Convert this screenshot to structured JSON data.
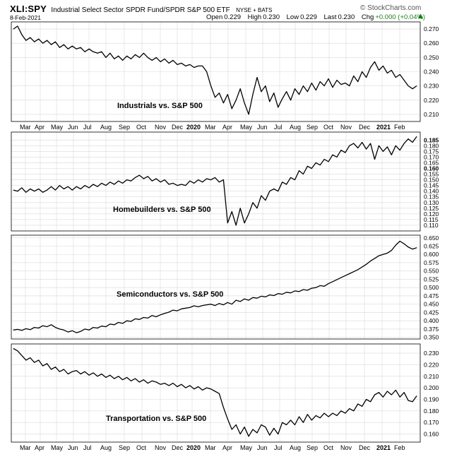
{
  "header": {
    "symbol": "XLI:SPY",
    "description": "Industrial Select Sector SPDR Fund/SPDR S&P 500 ETF",
    "exchange": "NYSE + BATS",
    "date": "8-Feb-2021",
    "open_label": "Open",
    "open": "0.229",
    "high_label": "High",
    "high": "0.230",
    "low_label": "Low",
    "low": "0.229",
    "last_label": "Last",
    "last": "0.230",
    "chg_label": "Chg",
    "chg": "+0.000 (+0.04%)",
    "watermark": "© StockCharts.com",
    "flag_icon": "up-arrow-icon",
    "colors": {
      "line": "#000000",
      "grid": "#d9d9d9",
      "border": "#000000",
      "chg": "#1a7d1a"
    }
  },
  "x_axis": {
    "labels": [
      "Mar",
      "Apr",
      "May",
      "Jun",
      "Jul",
      "Aug",
      "Sep",
      "Oct",
      "Nov",
      "Dec",
      "2020",
      "Mar",
      "Apr",
      "May",
      "Jun",
      "Jul",
      "Aug",
      "Sep",
      "Oct",
      "Nov",
      "Dec",
      "2021",
      "Feb"
    ],
    "bold": [
      "2020",
      "2021"
    ]
  },
  "chart_data": [
    {
      "type": "line",
      "label": "Industrials vs. S&P 500",
      "ylim": [
        0.205,
        0.275
      ],
      "yticks": [
        "0.270",
        "0.260",
        "0.250",
        "0.240",
        "0.230",
        "0.220",
        "0.210"
      ],
      "ytick_values": [
        0.27,
        0.26,
        0.25,
        0.24,
        0.23,
        0.22,
        0.21
      ],
      "grid": true,
      "x": [
        0,
        6,
        12,
        18,
        24,
        30,
        36,
        42,
        48,
        54,
        60,
        66,
        72,
        78,
        84,
        90,
        96,
        102,
        108,
        114,
        120,
        126,
        132,
        138,
        144,
        150,
        156,
        162,
        168,
        174,
        180,
        186,
        192,
        198,
        204,
        210,
        216,
        222,
        228,
        234,
        240,
        246,
        252,
        258,
        264,
        270,
        276,
        282,
        288,
        294,
        300,
        306,
        312,
        318,
        324,
        330,
        336,
        342,
        348,
        354,
        360,
        366,
        372,
        378,
        384,
        390,
        396,
        402,
        408,
        414,
        420,
        426,
        432,
        438,
        444,
        450,
        456,
        462,
        468,
        474,
        480,
        486,
        492,
        498,
        504,
        510,
        516,
        522,
        528,
        534,
        540,
        546,
        552,
        558,
        564,
        570,
        576
      ],
      "values": [
        0.27,
        0.272,
        0.266,
        0.262,
        0.264,
        0.261,
        0.263,
        0.26,
        0.262,
        0.259,
        0.261,
        0.257,
        0.259,
        0.256,
        0.258,
        0.256,
        0.257,
        0.254,
        0.256,
        0.254,
        0.253,
        0.254,
        0.25,
        0.253,
        0.249,
        0.251,
        0.248,
        0.251,
        0.249,
        0.252,
        0.25,
        0.253,
        0.25,
        0.248,
        0.25,
        0.247,
        0.249,
        0.246,
        0.248,
        0.245,
        0.246,
        0.244,
        0.245,
        0.243,
        0.244,
        0.244,
        0.24,
        0.23,
        0.222,
        0.225,
        0.218,
        0.224,
        0.214,
        0.22,
        0.228,
        0.218,
        0.21,
        0.224,
        0.236,
        0.226,
        0.23,
        0.219,
        0.225,
        0.215,
        0.221,
        0.226,
        0.22,
        0.228,
        0.224,
        0.23,
        0.226,
        0.232,
        0.227,
        0.233,
        0.23,
        0.235,
        0.229,
        0.234,
        0.231,
        0.232,
        0.23,
        0.237,
        0.233,
        0.24,
        0.236,
        0.243,
        0.247,
        0.241,
        0.244,
        0.239,
        0.241,
        0.236,
        0.238,
        0.234,
        0.23,
        0.228,
        0.23
      ]
    },
    {
      "type": "line",
      "label": "Homebuilders vs. S&P 500",
      "ylim": [
        0.105,
        0.192
      ],
      "yticks": [
        "0.185",
        "0.180",
        "0.175",
        "0.170",
        "0.165",
        "0.160",
        "0.155",
        "0.150",
        "0.145",
        "0.140",
        "0.135",
        "0.130",
        "0.125",
        "0.120",
        "0.115",
        "0.110"
      ],
      "ytick_values": [
        0.185,
        0.18,
        0.175,
        0.17,
        0.165,
        0.16,
        0.155,
        0.15,
        0.145,
        0.14,
        0.135,
        0.13,
        0.125,
        0.12,
        0.115,
        0.11
      ],
      "bold_ticks": [
        "0.185",
        "0.160"
      ],
      "grid": true,
      "x": [
        0,
        6,
        12,
        18,
        24,
        30,
        36,
        42,
        48,
        54,
        60,
        66,
        72,
        78,
        84,
        90,
        96,
        102,
        108,
        114,
        120,
        126,
        132,
        138,
        144,
        150,
        156,
        162,
        168,
        174,
        180,
        186,
        192,
        198,
        204,
        210,
        216,
        222,
        228,
        234,
        240,
        246,
        252,
        258,
        264,
        270,
        276,
        282,
        288,
        294,
        300,
        306,
        312,
        318,
        324,
        330,
        336,
        342,
        348,
        354,
        360,
        366,
        372,
        378,
        384,
        390,
        396,
        402,
        408,
        414,
        420,
        426,
        432,
        438,
        444,
        450,
        456,
        462,
        468,
        474,
        480,
        486,
        492,
        498,
        504,
        510,
        516,
        522,
        528,
        534,
        540,
        546,
        552,
        558,
        564,
        570,
        576
      ],
      "values": [
        0.141,
        0.14,
        0.143,
        0.139,
        0.142,
        0.14,
        0.142,
        0.139,
        0.141,
        0.144,
        0.141,
        0.145,
        0.142,
        0.144,
        0.141,
        0.144,
        0.142,
        0.145,
        0.143,
        0.146,
        0.144,
        0.147,
        0.145,
        0.148,
        0.146,
        0.149,
        0.147,
        0.15,
        0.149,
        0.152,
        0.154,
        0.151,
        0.153,
        0.149,
        0.151,
        0.148,
        0.15,
        0.146,
        0.147,
        0.145,
        0.146,
        0.145,
        0.149,
        0.147,
        0.15,
        0.148,
        0.151,
        0.15,
        0.152,
        0.148,
        0.15,
        0.112,
        0.122,
        0.11,
        0.125,
        0.112,
        0.12,
        0.13,
        0.125,
        0.136,
        0.132,
        0.14,
        0.142,
        0.14,
        0.148,
        0.146,
        0.152,
        0.15,
        0.158,
        0.155,
        0.162,
        0.16,
        0.165,
        0.163,
        0.168,
        0.166,
        0.172,
        0.17,
        0.176,
        0.174,
        0.18,
        0.182,
        0.178,
        0.183,
        0.177,
        0.182,
        0.168,
        0.18,
        0.175,
        0.179,
        0.172,
        0.18,
        0.176,
        0.182,
        0.186,
        0.183,
        0.188
      ]
    },
    {
      "type": "line",
      "label": "Semiconductors vs. S&P 500",
      "ylim": [
        0.345,
        0.658
      ],
      "yticks": [
        "0.650",
        "0.625",
        "0.600",
        "0.575",
        "0.550",
        "0.525",
        "0.500",
        "0.475",
        "0.450",
        "0.425",
        "0.400",
        "0.375",
        "0.350"
      ],
      "ytick_values": [
        0.65,
        0.625,
        0.6,
        0.575,
        0.55,
        0.525,
        0.5,
        0.475,
        0.45,
        0.425,
        0.4,
        0.375,
        0.35
      ],
      "grid": true,
      "x": [
        0,
        6,
        12,
        18,
        24,
        30,
        36,
        42,
        48,
        54,
        60,
        66,
        72,
        78,
        84,
        90,
        96,
        102,
        108,
        114,
        120,
        126,
        132,
        138,
        144,
        150,
        156,
        162,
        168,
        174,
        180,
        186,
        192,
        198,
        204,
        210,
        216,
        222,
        228,
        234,
        240,
        246,
        252,
        258,
        264,
        270,
        276,
        282,
        288,
        294,
        300,
        306,
        312,
        318,
        324,
        330,
        336,
        342,
        348,
        354,
        360,
        366,
        372,
        378,
        384,
        390,
        396,
        402,
        408,
        414,
        420,
        426,
        432,
        438,
        444,
        450,
        456,
        462,
        468,
        474,
        480,
        486,
        492,
        498,
        504,
        510,
        516,
        522,
        528,
        534,
        540,
        546,
        552,
        558,
        564,
        570,
        576
      ],
      "values": [
        0.372,
        0.374,
        0.371,
        0.376,
        0.373,
        0.38,
        0.378,
        0.385,
        0.382,
        0.388,
        0.38,
        0.375,
        0.372,
        0.366,
        0.37,
        0.364,
        0.368,
        0.375,
        0.372,
        0.38,
        0.378,
        0.384,
        0.382,
        0.39,
        0.388,
        0.395,
        0.392,
        0.4,
        0.398,
        0.406,
        0.404,
        0.41,
        0.408,
        0.416,
        0.412,
        0.418,
        0.422,
        0.426,
        0.432,
        0.43,
        0.436,
        0.438,
        0.44,
        0.445,
        0.442,
        0.446,
        0.448,
        0.45,
        0.446,
        0.452,
        0.448,
        0.455,
        0.45,
        0.462,
        0.458,
        0.466,
        0.462,
        0.47,
        0.468,
        0.474,
        0.472,
        0.478,
        0.476,
        0.482,
        0.48,
        0.486,
        0.484,
        0.49,
        0.488,
        0.494,
        0.492,
        0.498,
        0.5,
        0.506,
        0.504,
        0.512,
        0.518,
        0.524,
        0.53,
        0.536,
        0.542,
        0.548,
        0.554,
        0.562,
        0.57,
        0.58,
        0.588,
        0.596,
        0.6,
        0.604,
        0.612,
        0.628,
        0.64,
        0.632,
        0.622,
        0.616,
        0.62
      ]
    },
    {
      "type": "line",
      "label": "Transportation vs. S&P 500",
      "ylim": [
        0.153,
        0.238
      ],
      "yticks": [
        "0.230",
        "0.220",
        "0.210",
        "0.200",
        "0.190",
        "0.180",
        "0.170",
        "0.160"
      ],
      "ytick_values": [
        0.23,
        0.22,
        0.21,
        0.2,
        0.19,
        0.18,
        0.17,
        0.16
      ],
      "grid": true,
      "x": [
        0,
        6,
        12,
        18,
        24,
        30,
        36,
        42,
        48,
        54,
        60,
        66,
        72,
        78,
        84,
        90,
        96,
        102,
        108,
        114,
        120,
        126,
        132,
        138,
        144,
        150,
        156,
        162,
        168,
        174,
        180,
        186,
        192,
        198,
        204,
        210,
        216,
        222,
        228,
        234,
        240,
        246,
        252,
        258,
        264,
        270,
        276,
        282,
        288,
        294,
        300,
        306,
        312,
        318,
        324,
        330,
        336,
        342,
        348,
        354,
        360,
        366,
        372,
        378,
        384,
        390,
        396,
        402,
        408,
        414,
        420,
        426,
        432,
        438,
        444,
        450,
        456,
        462,
        468,
        474,
        480,
        486,
        492,
        498,
        504,
        510,
        516,
        522,
        528,
        534,
        540,
        546,
        552,
        558,
        564,
        570,
        576
      ],
      "values": [
        0.234,
        0.232,
        0.228,
        0.224,
        0.226,
        0.222,
        0.224,
        0.219,
        0.221,
        0.216,
        0.218,
        0.214,
        0.216,
        0.212,
        0.214,
        0.215,
        0.212,
        0.214,
        0.211,
        0.213,
        0.21,
        0.212,
        0.209,
        0.211,
        0.208,
        0.21,
        0.207,
        0.209,
        0.206,
        0.208,
        0.205,
        0.207,
        0.204,
        0.206,
        0.205,
        0.203,
        0.204,
        0.202,
        0.204,
        0.201,
        0.203,
        0.2,
        0.202,
        0.199,
        0.201,
        0.198,
        0.2,
        0.199,
        0.197,
        0.195,
        0.183,
        0.173,
        0.164,
        0.168,
        0.16,
        0.166,
        0.158,
        0.164,
        0.161,
        0.168,
        0.166,
        0.159,
        0.165,
        0.16,
        0.17,
        0.168,
        0.172,
        0.168,
        0.175,
        0.17,
        0.177,
        0.172,
        0.176,
        0.174,
        0.178,
        0.175,
        0.178,
        0.176,
        0.18,
        0.178,
        0.182,
        0.18,
        0.186,
        0.184,
        0.19,
        0.188,
        0.194,
        0.196,
        0.192,
        0.197,
        0.194,
        0.198,
        0.192,
        0.196,
        0.189,
        0.188,
        0.193
      ]
    }
  ]
}
